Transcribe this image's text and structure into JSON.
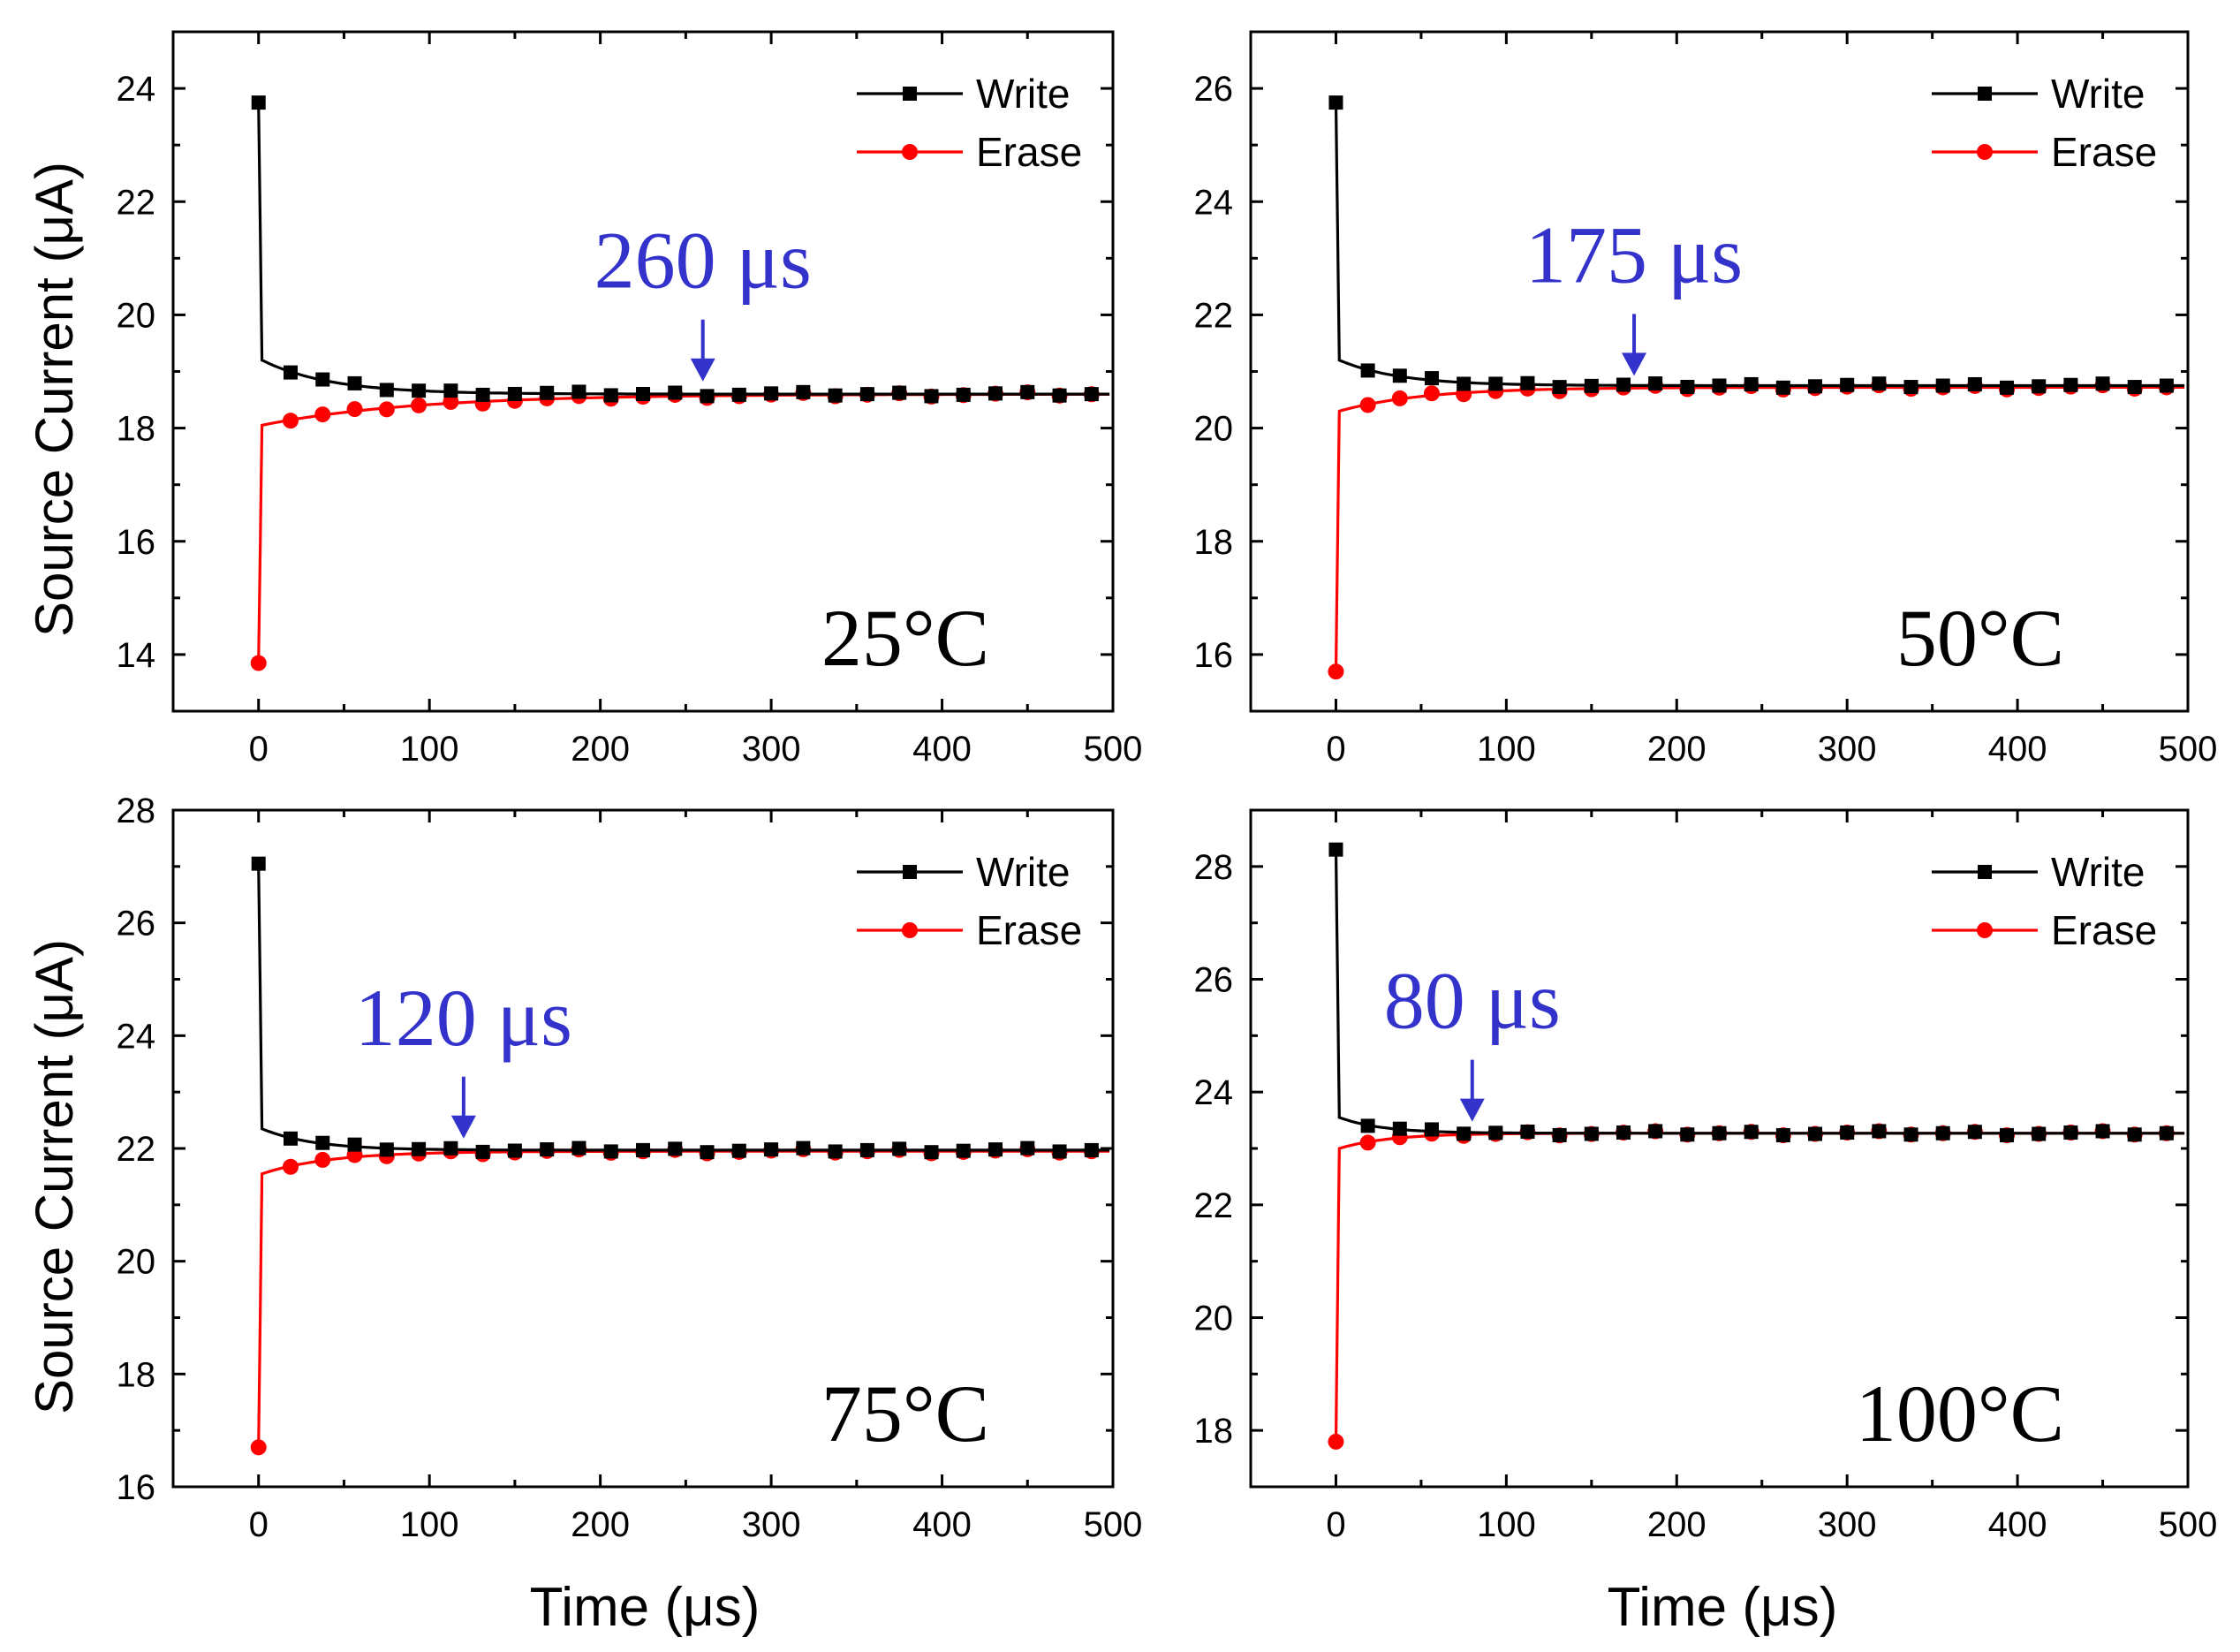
{
  "figure": {
    "ylabel": "Source Current (μA)",
    "xlabel": "Time (μs)"
  },
  "colors": {
    "write": "#000000",
    "erase": "#ff0000",
    "annotation": "#3333cc",
    "axis": "#000000"
  },
  "chart_data": [
    {
      "type": "line",
      "panel": "top-left",
      "temperature_label": "25°C",
      "annotation": {
        "text": "260 μs",
        "x": 260,
        "y": 18.7
      },
      "xlim": [
        -50,
        500
      ],
      "xticks": [
        0,
        100,
        200,
        300,
        400,
        500
      ],
      "ylim": [
        13,
        25
      ],
      "yticks": [
        14,
        16,
        18,
        20,
        22,
        24
      ],
      "legend": "top-right",
      "series": [
        {
          "name": "Write",
          "marker": "square",
          "initial": 23.75,
          "final": 18.6,
          "tau": 5,
          "settle": 40,
          "start_from": 19.2,
          "mark_start": 19.2
        },
        {
          "name": "Erase",
          "marker": "circle",
          "initial": 13.85,
          "final": 18.6,
          "tau": 4,
          "settle": 90,
          "start_from": 18.05,
          "mark_start": 18.1
        }
      ]
    },
    {
      "type": "line",
      "panel": "top-right",
      "temperature_label": "50°C",
      "annotation": {
        "text": "175 μs",
        "x": 175,
        "y": 20.8
      },
      "xlim": [
        -50,
        500
      ],
      "xticks": [
        0,
        100,
        200,
        300,
        400,
        500
      ],
      "ylim": [
        15,
        27
      ],
      "yticks": [
        16,
        18,
        20,
        22,
        24,
        26
      ],
      "legend": "top-right",
      "series": [
        {
          "name": "Write",
          "marker": "square",
          "initial": 25.75,
          "final": 20.75,
          "tau": 4,
          "settle": 35,
          "start_from": 21.2,
          "mark_start": 21.2
        },
        {
          "name": "Erase",
          "marker": "circle",
          "initial": 15.7,
          "final": 20.72,
          "tau": 3,
          "settle": 50,
          "start_from": 20.3,
          "mark_start": 20.35
        }
      ]
    },
    {
      "type": "line",
      "panel": "bottom-left",
      "temperature_label": "75°C",
      "annotation": {
        "text": "120 μs",
        "x": 120,
        "y": 22.05
      },
      "xlim": [
        -50,
        500
      ],
      "xticks": [
        0,
        100,
        200,
        300,
        400,
        500
      ],
      "ylim": [
        16,
        28
      ],
      "yticks": [
        16,
        18,
        20,
        22,
        24,
        26,
        28
      ],
      "legend": "top-right",
      "series": [
        {
          "name": "Write",
          "marker": "square",
          "initial": 27.05,
          "final": 21.97,
          "tau": 4,
          "settle": 30,
          "start_from": 22.35,
          "mark_start": 22.35
        },
        {
          "name": "Erase",
          "marker": "circle",
          "initial": 16.7,
          "final": 21.95,
          "tau": 3,
          "settle": 40,
          "start_from": 21.55,
          "mark_start": 21.6
        }
      ]
    },
    {
      "type": "line",
      "panel": "bottom-right",
      "temperature_label": "100°C",
      "annotation": {
        "text": "80 μs",
        "x": 80,
        "y": 23.35
      },
      "xlim": [
        -50,
        500
      ],
      "xticks": [
        0,
        100,
        200,
        300,
        400,
        500
      ],
      "ylim": [
        17,
        29
      ],
      "yticks": [
        18,
        20,
        22,
        24,
        26,
        28
      ],
      "legend": "top-right",
      "series": [
        {
          "name": "Write",
          "marker": "square",
          "initial": 28.3,
          "final": 23.27,
          "tau": 3,
          "settle": 25,
          "start_from": 23.55,
          "mark_start": 23.55
        },
        {
          "name": "Erase",
          "marker": "circle",
          "initial": 17.8,
          "final": 23.27,
          "tau": 3,
          "settle": 30,
          "start_from": 23.0,
          "mark_start": 23.05
        }
      ]
    }
  ]
}
